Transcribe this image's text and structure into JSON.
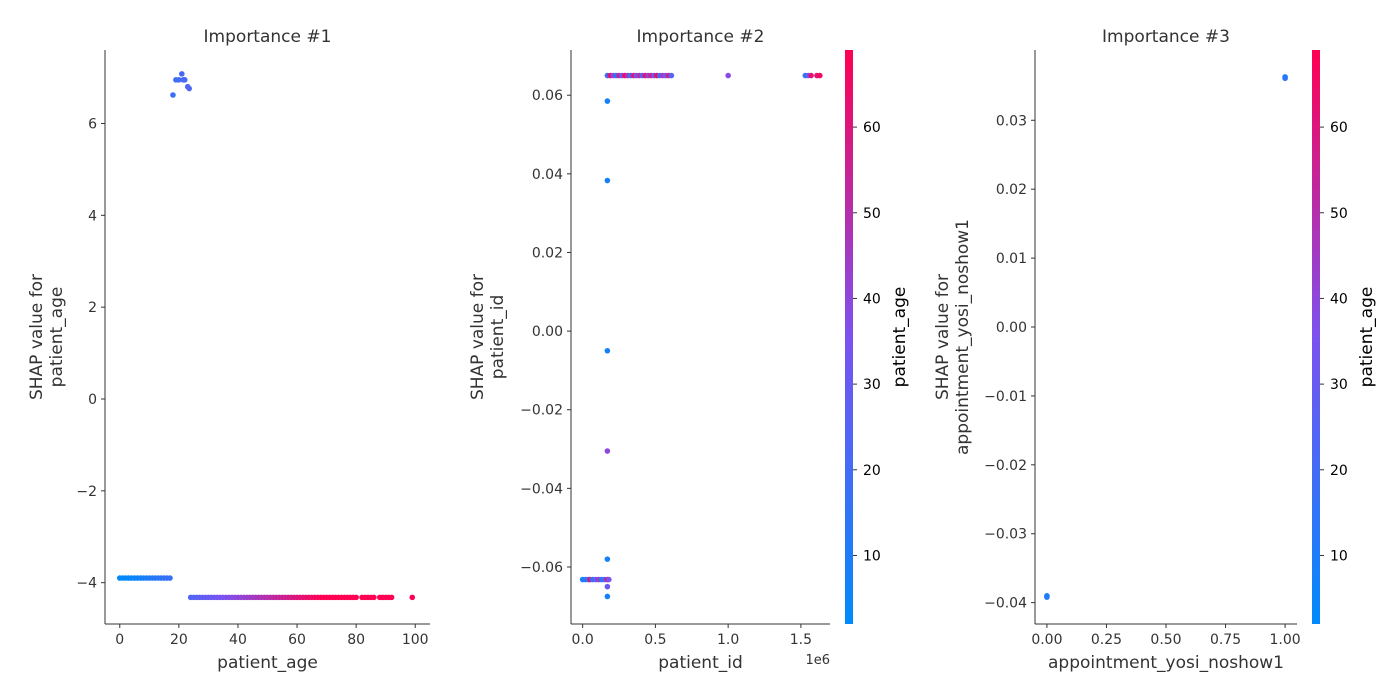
{
  "chart_data": [
    {
      "type": "scatter",
      "title": "Importance #1",
      "xlabel": "patient_age",
      "ylabel": "SHAP value for\npatient_age",
      "xlim": [
        -5,
        105
      ],
      "ylim": [
        -4.9,
        7.6
      ],
      "xticks": [
        0,
        20,
        40,
        60,
        80,
        100
      ],
      "xtick_labels": [
        "0",
        "20",
        "40",
        "60",
        "80",
        "100"
      ],
      "yticks": [
        -4,
        -2,
        0,
        2,
        4,
        6
      ],
      "ytick_labels": [
        "−4",
        "−2",
        "0",
        "2",
        "4",
        "6"
      ],
      "x_offset_label": "",
      "color_feature": "patient_age",
      "colorbar": null,
      "points": [
        [
          0,
          -3.9
        ],
        [
          1,
          -3.9
        ],
        [
          2,
          -3.9
        ],
        [
          3,
          -3.9
        ],
        [
          4,
          -3.9
        ],
        [
          5,
          -3.9
        ],
        [
          6,
          -3.9
        ],
        [
          7,
          -3.9
        ],
        [
          8,
          -3.9
        ],
        [
          9,
          -3.9
        ],
        [
          10,
          -3.9
        ],
        [
          11,
          -3.9
        ],
        [
          12,
          -3.9
        ],
        [
          13,
          -3.9
        ],
        [
          14,
          -3.9
        ],
        [
          15,
          -3.9
        ],
        [
          16,
          -3.9
        ],
        [
          17,
          -3.9
        ],
        [
          18,
          6.62
        ],
        [
          19,
          6.95
        ],
        [
          20,
          6.95
        ],
        [
          21,
          7.08
        ],
        [
          21.5,
          6.95
        ],
        [
          22,
          6.95
        ],
        [
          23,
          6.8
        ],
        [
          23.5,
          6.76
        ],
        [
          24,
          -4.32
        ],
        [
          25,
          -4.32
        ],
        [
          26,
          -4.32
        ],
        [
          27,
          -4.32
        ],
        [
          28,
          -4.32
        ],
        [
          29,
          -4.32
        ],
        [
          30,
          -4.32
        ],
        [
          31,
          -4.32
        ],
        [
          32,
          -4.32
        ],
        [
          33,
          -4.32
        ],
        [
          34,
          -4.32
        ],
        [
          35,
          -4.32
        ],
        [
          36,
          -4.32
        ],
        [
          37,
          -4.32
        ],
        [
          38,
          -4.32
        ],
        [
          39,
          -4.32
        ],
        [
          40,
          -4.32
        ],
        [
          41,
          -4.32
        ],
        [
          42,
          -4.32
        ],
        [
          43,
          -4.32
        ],
        [
          44,
          -4.32
        ],
        [
          45,
          -4.32
        ],
        [
          46,
          -4.32
        ],
        [
          47,
          -4.32
        ],
        [
          48,
          -4.32
        ],
        [
          49,
          -4.32
        ],
        [
          50,
          -4.32
        ],
        [
          51,
          -4.32
        ],
        [
          52,
          -4.32
        ],
        [
          53,
          -4.32
        ],
        [
          54,
          -4.32
        ],
        [
          55,
          -4.32
        ],
        [
          56,
          -4.32
        ],
        [
          57,
          -4.32
        ],
        [
          58,
          -4.32
        ],
        [
          59,
          -4.32
        ],
        [
          60,
          -4.32
        ],
        [
          61,
          -4.32
        ],
        [
          62,
          -4.32
        ],
        [
          63,
          -4.32
        ],
        [
          64,
          -4.32
        ],
        [
          65,
          -4.32
        ],
        [
          66,
          -4.32
        ],
        [
          67,
          -4.32
        ],
        [
          68,
          -4.32
        ],
        [
          69,
          -4.32
        ],
        [
          70,
          -4.32
        ],
        [
          71,
          -4.32
        ],
        [
          72,
          -4.32
        ],
        [
          73,
          -4.32
        ],
        [
          74,
          -4.32
        ],
        [
          75,
          -4.32
        ],
        [
          76,
          -4.32
        ],
        [
          77,
          -4.32
        ],
        [
          78,
          -4.32
        ],
        [
          79,
          -4.32
        ],
        [
          80,
          -4.32
        ],
        [
          82,
          -4.32
        ],
        [
          83,
          -4.32
        ],
        [
          84,
          -4.32
        ],
        [
          85,
          -4.32
        ],
        [
          86,
          -4.32
        ],
        [
          88,
          -4.32
        ],
        [
          89,
          -4.32
        ],
        [
          90,
          -4.32
        ],
        [
          91,
          -4.32
        ],
        [
          92,
          -4.32
        ],
        [
          99,
          -4.32
        ]
      ]
    },
    {
      "type": "scatter",
      "title": "Importance #2",
      "xlabel": "patient_id",
      "ylabel": "SHAP value for\npatient_id",
      "xlim": [
        -0.08,
        1.7
      ],
      "ylim": [
        -0.0745,
        0.0715
      ],
      "xticks": [
        0.0,
        0.5,
        1.0,
        1.5
      ],
      "xtick_labels": [
        "0.0",
        "0.5",
        "1.0",
        "1.5"
      ],
      "yticks": [
        -0.06,
        -0.04,
        -0.02,
        0.0,
        0.02,
        0.04,
        0.06
      ],
      "ytick_labels": [
        "−0.06",
        "−0.04",
        "−0.02",
        "0.00",
        "0.02",
        "0.04",
        "0.06"
      ],
      "x_offset_label": "1e6",
      "color_feature": "patient_age",
      "colorbar": {
        "label": "patient_age",
        "range": [
          2,
          69
        ],
        "ticks": [
          10,
          20,
          30,
          40,
          50,
          60
        ],
        "tick_labels": [
          "10",
          "20",
          "30",
          "40",
          "50",
          "60"
        ]
      },
      "points": [
        [
          0.0,
          -0.0632,
          8
        ],
        [
          0.02,
          -0.0632,
          12
        ],
        [
          0.04,
          -0.0632,
          20
        ],
        [
          0.05,
          -0.0632,
          55
        ],
        [
          0.07,
          -0.0632,
          15
        ],
        [
          0.09,
          -0.0632,
          30
        ],
        [
          0.11,
          -0.0632,
          45
        ],
        [
          0.13,
          -0.0632,
          10
        ],
        [
          0.15,
          -0.0632,
          25
        ],
        [
          0.17,
          -0.0632,
          60
        ],
        [
          0.18,
          -0.0632,
          35
        ],
        [
          0.17,
          -0.065,
          30
        ],
        [
          0.17,
          -0.0675,
          8
        ],
        [
          0.17,
          -0.058,
          8
        ],
        [
          0.17,
          -0.0305,
          40
        ],
        [
          0.17,
          -0.005,
          8
        ],
        [
          0.17,
          0.0383,
          8
        ],
        [
          0.17,
          0.0585,
          8
        ],
        [
          0.17,
          0.065,
          20
        ],
        [
          0.19,
          0.065,
          62
        ],
        [
          0.21,
          0.065,
          40
        ],
        [
          0.23,
          0.065,
          15
        ],
        [
          0.25,
          0.065,
          55
        ],
        [
          0.27,
          0.065,
          30
        ],
        [
          0.29,
          0.065,
          65
        ],
        [
          0.31,
          0.065,
          45
        ],
        [
          0.33,
          0.065,
          20
        ],
        [
          0.35,
          0.065,
          60
        ],
        [
          0.37,
          0.065,
          35
        ],
        [
          0.39,
          0.065,
          50
        ],
        [
          0.41,
          0.065,
          25
        ],
        [
          0.43,
          0.065,
          62
        ],
        [
          0.45,
          0.065,
          40
        ],
        [
          0.47,
          0.065,
          58
        ],
        [
          0.49,
          0.065,
          30
        ],
        [
          0.51,
          0.065,
          66
        ],
        [
          0.53,
          0.065,
          20
        ],
        [
          0.55,
          0.065,
          45
        ],
        [
          0.57,
          0.065,
          35
        ],
        [
          0.59,
          0.065,
          55
        ],
        [
          0.61,
          0.065,
          25
        ],
        [
          1.0,
          0.065,
          38
        ],
        [
          1.53,
          0.065,
          15
        ],
        [
          1.55,
          0.065,
          30
        ],
        [
          1.57,
          0.065,
          62
        ],
        [
          1.61,
          0.065,
          60
        ],
        [
          1.63,
          0.065,
          66
        ]
      ]
    },
    {
      "type": "scatter",
      "title": "Importance #3",
      "xlabel": "appointment_yosi_noshow1",
      "ylabel": "SHAP value for\nappointment_yosi_noshow1",
      "xlim": [
        -0.05,
        1.05
      ],
      "ylim": [
        -0.0431,
        0.0402
      ],
      "xticks": [
        0.0,
        0.25,
        0.5,
        0.75,
        1.0
      ],
      "xtick_labels": [
        "0.00",
        "0.25",
        "0.50",
        "0.75",
        "1.00"
      ],
      "yticks": [
        -0.04,
        -0.03,
        -0.02,
        -0.01,
        0.0,
        0.01,
        0.02,
        0.03
      ],
      "ytick_labels": [
        "−0.04",
        "−0.03",
        "−0.02",
        "−0.01",
        "0.00",
        "0.01",
        "0.02",
        "0.03"
      ],
      "x_offset_label": "",
      "color_feature": "patient_age",
      "colorbar": {
        "label": "patient_age",
        "range": [
          2,
          69
        ],
        "ticks": [
          10,
          20,
          30,
          40,
          50,
          60
        ],
        "tick_labels": [
          "10",
          "20",
          "30",
          "40",
          "50",
          "60"
        ]
      },
      "points": [
        [
          0.0,
          -0.039,
          8
        ],
        [
          0.0,
          -0.0392,
          12
        ],
        [
          1.0,
          0.0363,
          10
        ],
        [
          1.0,
          0.0361,
          14
        ]
      ]
    }
  ],
  "colors": {
    "low": "#008afb",
    "mid": "#7c52f0",
    "high": "#ff0052"
  }
}
